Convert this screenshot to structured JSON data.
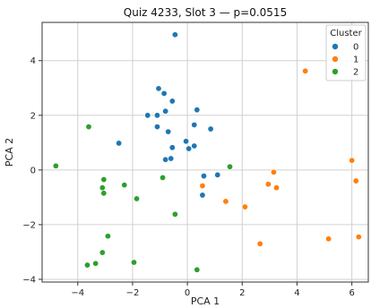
{
  "chart_data": {
    "type": "scatter",
    "title": "Quiz 4233, Slot 3 — p=0.0515",
    "xlabel": "PCA 1",
    "ylabel": "PCA 2",
    "xlim": [
      -5.3,
      6.6
    ],
    "ylim": [
      -4.1,
      5.4
    ],
    "xticks": [
      -4,
      -2,
      0,
      2,
      4,
      6
    ],
    "yticks": [
      -4,
      -2,
      0,
      2,
      4
    ],
    "grid": true,
    "legend": {
      "title": "Cluster",
      "placement": "top-right"
    },
    "series": [
      {
        "name": "0",
        "color": "#1f77b4",
        "points": [
          [
            -0.45,
            4.95
          ],
          [
            -1.05,
            2.98
          ],
          [
            -0.85,
            2.8
          ],
          [
            -0.55,
            2.52
          ],
          [
            0.35,
            2.2
          ],
          [
            -0.8,
            2.15
          ],
          [
            -1.45,
            2.0
          ],
          [
            -1.1,
            2.0
          ],
          [
            0.25,
            1.65
          ],
          [
            -1.1,
            1.58
          ],
          [
            0.85,
            1.5
          ],
          [
            -0.7,
            1.4
          ],
          [
            -2.5,
            0.98
          ],
          [
            -0.05,
            1.05
          ],
          [
            0.25,
            0.88
          ],
          [
            0.05,
            0.78
          ],
          [
            -0.55,
            0.82
          ],
          [
            -0.6,
            0.42
          ],
          [
            -0.8,
            0.38
          ],
          [
            0.6,
            -0.22
          ],
          [
            1.1,
            -0.18
          ],
          [
            0.55,
            -0.92
          ]
        ]
      },
      {
        "name": "1",
        "color": "#ff7f0e",
        "points": [
          [
            4.3,
            3.62
          ],
          [
            6.0,
            0.35
          ],
          [
            3.15,
            -0.08
          ],
          [
            6.15,
            -0.4
          ],
          [
            2.95,
            -0.52
          ],
          [
            0.55,
            -0.58
          ],
          [
            3.25,
            -0.65
          ],
          [
            1.4,
            -1.15
          ],
          [
            2.1,
            -1.35
          ],
          [
            5.15,
            -2.52
          ],
          [
            6.25,
            -2.45
          ],
          [
            2.65,
            -2.7
          ]
        ]
      },
      {
        "name": "2",
        "color": "#2ca02c",
        "points": [
          [
            -3.6,
            1.58
          ],
          [
            -4.8,
            0.15
          ],
          [
            1.55,
            0.12
          ],
          [
            -0.9,
            -0.28
          ],
          [
            -3.05,
            -0.35
          ],
          [
            -2.3,
            -0.55
          ],
          [
            -3.1,
            -0.65
          ],
          [
            -3.05,
            -0.85
          ],
          [
            -1.85,
            -1.05
          ],
          [
            -0.45,
            -1.62
          ],
          [
            -2.9,
            -2.42
          ],
          [
            -3.1,
            -3.02
          ],
          [
            -1.95,
            -3.38
          ],
          [
            -3.35,
            -3.42
          ],
          [
            -3.65,
            -3.48
          ],
          [
            0.35,
            -3.65
          ]
        ]
      }
    ]
  }
}
